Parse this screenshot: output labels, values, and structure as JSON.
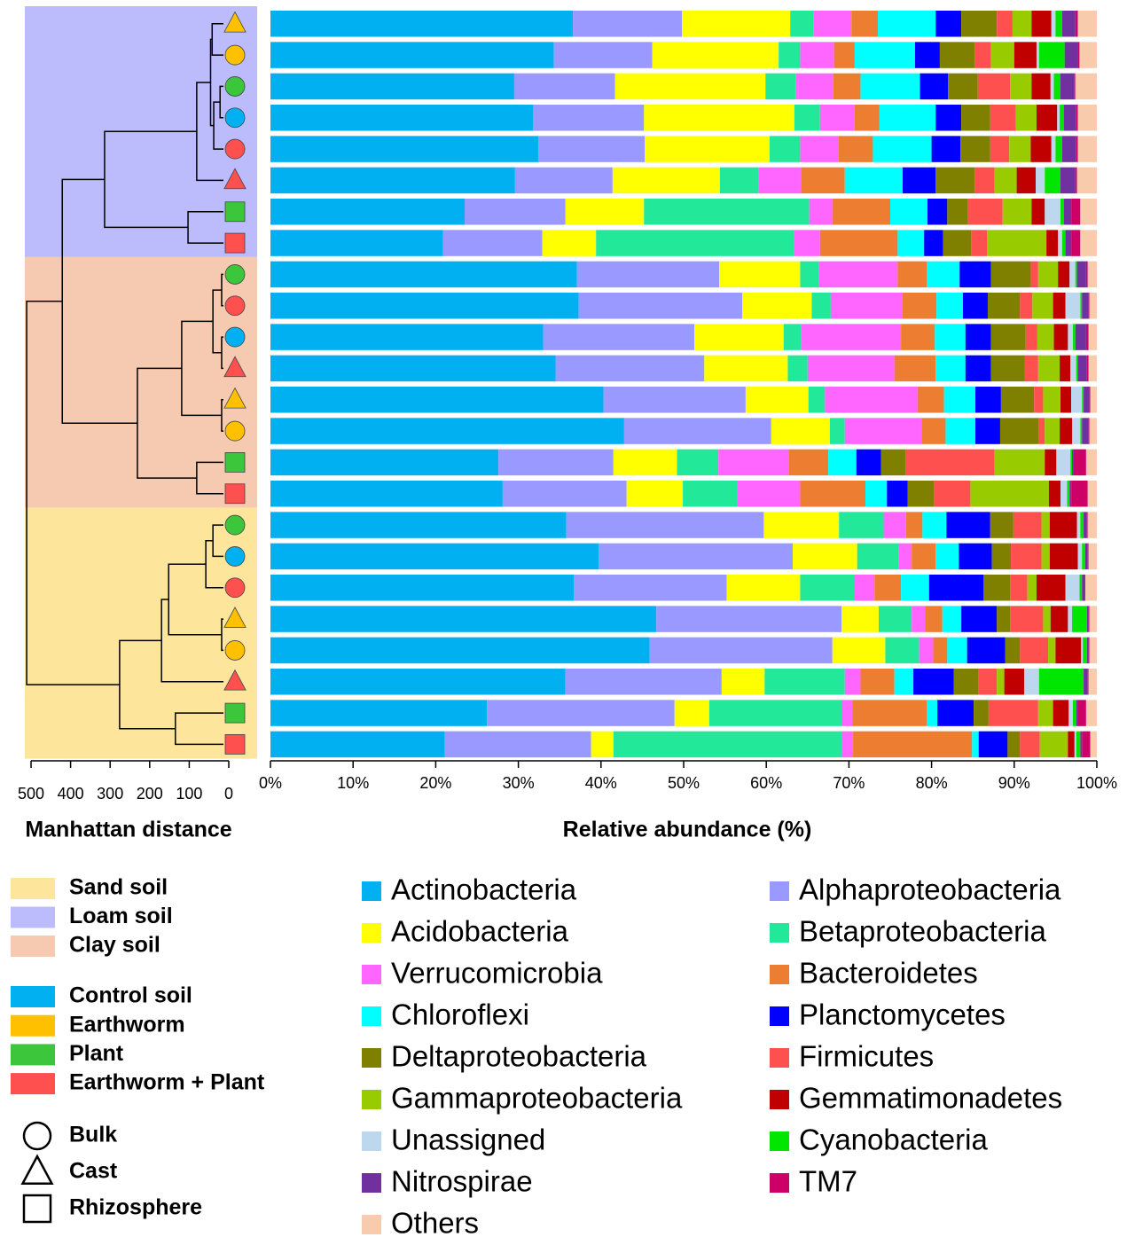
{
  "chart_data": {
    "type": "stacked_barh",
    "xlabel": "Relative abundance (%)",
    "xlim": [
      0,
      100
    ],
    "xticks": [
      {
        "value": 0,
        "label": "0%"
      },
      {
        "value": 10,
        "label": "10%"
      },
      {
        "value": 20,
        "label": "20%"
      },
      {
        "value": 30,
        "label": "30%"
      },
      {
        "value": 40,
        "label": "40%"
      },
      {
        "value": 50,
        "label": "50%"
      },
      {
        "value": 60,
        "label": "60%"
      },
      {
        "value": 70,
        "label": "70%"
      },
      {
        "value": 80,
        "label": "80%"
      },
      {
        "value": 90,
        "label": "90%"
      },
      {
        "value": 100,
        "label": "100%"
      }
    ],
    "categories": [
      null,
      null,
      null,
      null,
      null,
      null,
      null,
      null,
      null,
      null,
      null,
      null,
      null,
      null,
      null,
      null,
      null,
      null,
      null,
      null,
      null,
      null,
      null,
      null
    ],
    "series": [
      {
        "name": "Actinobacteria",
        "color": "#00b0f0",
        "values": [
          36.6,
          34.3,
          29.5,
          31.8,
          32.4,
          29.6,
          23.5,
          20.9,
          37.1,
          37.3,
          33.0,
          34.5,
          40.3,
          42.8,
          27.6,
          28.1,
          35.8,
          39.7,
          36.7,
          46.7,
          45.9,
          35.7,
          26.2,
          21.1
        ]
      },
      {
        "name": "Alphaproteobacteria",
        "color": "#9999ff",
        "values": [
          13.2,
          11.9,
          12.2,
          13.4,
          12.9,
          11.8,
          12.2,
          12.0,
          17.2,
          19.8,
          18.3,
          18.0,
          17.2,
          17.8,
          13.9,
          15.0,
          23.9,
          23.5,
          18.5,
          22.4,
          22.1,
          18.9,
          22.7,
          17.7
        ]
      },
      {
        "name": "Acidobacteria",
        "color": "#ffff00",
        "values": [
          13.1,
          15.3,
          18.2,
          18.2,
          15.1,
          13.0,
          9.5,
          6.5,
          9.8,
          8.4,
          10.8,
          10.1,
          7.6,
          7.1,
          7.7,
          6.8,
          9.1,
          7.8,
          8.9,
          4.5,
          6.4,
          5.2,
          4.2,
          2.7
        ]
      },
      {
        "name": "Betaproteobacteria",
        "color": "#22e89a",
        "values": [
          2.8,
          2.6,
          3.7,
          3.1,
          3.7,
          4.7,
          20.0,
          24.0,
          2.3,
          2.3,
          2.1,
          2.4,
          2.0,
          1.8,
          5.0,
          6.6,
          5.4,
          5.0,
          6.5,
          4.0,
          4.1,
          9.7,
          16.0,
          27.7
        ]
      },
      {
        "name": "Verrucomicrobia",
        "color": "#ff66ff",
        "values": [
          4.6,
          4.1,
          4.5,
          4.2,
          4.6,
          5.1,
          2.8,
          3.1,
          9.5,
          8.7,
          12.1,
          10.5,
          11.2,
          9.3,
          8.5,
          7.6,
          2.7,
          1.6,
          2.5,
          1.6,
          1.7,
          1.9,
          1.3,
          1.3
        ]
      },
      {
        "name": "Bacteroidetes",
        "color": "#ed7d31",
        "values": [
          3.2,
          2.5,
          3.3,
          3.0,
          4.2,
          5.3,
          7.0,
          9.4,
          3.5,
          4.1,
          4.1,
          5.0,
          3.2,
          2.9,
          4.8,
          7.9,
          2.0,
          2.9,
          3.2,
          2.1,
          1.7,
          4.1,
          9.0,
          14.4
        ]
      },
      {
        "name": "Chloroflexi",
        "color": "#00ffff",
        "values": [
          7.0,
          7.3,
          7.2,
          6.8,
          7.1,
          7.0,
          4.5,
          3.2,
          4.0,
          3.2,
          3.7,
          3.6,
          3.8,
          3.6,
          3.4,
          2.6,
          2.9,
          2.8,
          3.4,
          2.3,
          2.4,
          2.3,
          1.3,
          0.8
        ]
      },
      {
        "name": "Planctomycetes",
        "color": "#0000ff",
        "values": [
          3.1,
          3.0,
          3.4,
          3.1,
          3.5,
          4.0,
          2.4,
          2.3,
          3.8,
          3.0,
          3.1,
          3.1,
          3.1,
          3.0,
          3.0,
          2.5,
          5.3,
          4.0,
          6.6,
          4.3,
          4.6,
          4.9,
          4.4,
          3.5
        ]
      },
      {
        "name": "Deltaproteobacteria",
        "color": "#808000",
        "values": [
          4.3,
          4.2,
          3.6,
          3.5,
          3.6,
          4.7,
          2.5,
          3.4,
          4.8,
          3.9,
          4.2,
          4.1,
          4.0,
          4.7,
          3.0,
          3.2,
          2.8,
          2.3,
          3.2,
          1.6,
          1.8,
          3.0,
          1.8,
          1.5
        ]
      },
      {
        "name": "Firmicutes",
        "color": "#ff5050",
        "values": [
          1.9,
          2.0,
          3.9,
          3.1,
          2.3,
          2.4,
          4.2,
          1.9,
          0.9,
          1.5,
          1.4,
          1.6,
          1.1,
          0.7,
          10.7,
          4.4,
          3.4,
          3.7,
          2.1,
          4.0,
          3.4,
          2.2,
          6.0,
          2.4
        ]
      },
      {
        "name": "Gammaproteobacteria",
        "color": "#99cc00",
        "values": [
          2.3,
          2.8,
          2.6,
          2.5,
          2.6,
          2.7,
          3.5,
          7.2,
          2.4,
          2.5,
          2.0,
          2.6,
          2.1,
          1.8,
          6.1,
          9.5,
          1.0,
          1.0,
          1.1,
          0.9,
          0.9,
          0.9,
          1.8,
          3.4
        ]
      },
      {
        "name": "Gemmatimonadetes",
        "color": "#c00000",
        "values": [
          2.4,
          2.7,
          2.3,
          2.5,
          2.5,
          2.3,
          1.6,
          1.4,
          1.4,
          1.5,
          1.7,
          1.3,
          1.3,
          1.5,
          1.4,
          1.4,
          3.3,
          3.4,
          3.5,
          2.1,
          3.1,
          2.4,
          1.9,
          0.8
        ]
      },
      {
        "name": "Unassigned",
        "color": "#bdd7ee",
        "values": [
          0.5,
          0.3,
          0.4,
          0.3,
          0.5,
          1.1,
          1.9,
          0.5,
          0.7,
          1.8,
          0.6,
          0.7,
          1.3,
          1.0,
          1.7,
          0.8,
          0.4,
          0.5,
          1.7,
          0.5,
          0.2,
          1.8,
          0.5,
          0.2
        ]
      },
      {
        "name": "Cyanobacteria",
        "color": "#00e600",
        "values": [
          0.8,
          3.1,
          0.8,
          0.5,
          0.8,
          1.9,
          0.4,
          0.4,
          0.2,
          0.2,
          0.3,
          0.2,
          0.2,
          0.2,
          0.2,
          0.3,
          0.4,
          0.4,
          0.3,
          1.8,
          0.5,
          5.4,
          0.4,
          0.5
        ]
      },
      {
        "name": "Nitrospirae",
        "color": "#7030a0",
        "values": [
          1.6,
          1.6,
          1.7,
          1.5,
          1.7,
          1.8,
          0.9,
          0.7,
          1.1,
          0.8,
          1.3,
          1.1,
          0.7,
          0.8,
          0.2,
          0.2,
          0.4,
          0.3,
          0.3,
          0.2,
          0.2,
          0.5,
          0.2,
          0.2
        ]
      },
      {
        "name": "TM7",
        "color": "#cc0066",
        "values": [
          0.3,
          0.2,
          0.1,
          0.2,
          0.2,
          0.2,
          1.1,
          1.1,
          0.2,
          0.1,
          0.3,
          0.2,
          0.1,
          0.1,
          1.5,
          2.0,
          0.1,
          0.1,
          0.1,
          0.1,
          0.1,
          0.1,
          1.0,
          1.0
        ]
      },
      {
        "name": "Others",
        "color": "#f8cbad",
        "values": [
          2.3,
          2.1,
          2.6,
          2.3,
          2.3,
          2.4,
          2.0,
          2.0,
          1.1,
          0.9,
          1.0,
          1.0,
          0.8,
          0.9,
          1.3,
          1.1,
          1.1,
          1.0,
          1.4,
          0.9,
          0.9,
          1.0,
          1.3,
          0.8
        ]
      }
    ],
    "dendrogram": {
      "xlabel": "Manhattan distance",
      "xlim": [
        500,
        0
      ],
      "xticks": [
        500,
        400,
        300,
        200,
        100,
        0
      ],
      "merges": [
        {
          "children": [
            0,
            1
          ],
          "height": 42
        },
        {
          "children": [
            2,
            3
          ],
          "height": 22
        },
        {
          "children": [
            25,
            4
          ],
          "height": 38
        },
        {
          "children": [
            24,
            26
          ],
          "height": 46
        },
        {
          "children": [
            27,
            5
          ],
          "height": 81
        },
        {
          "children": [
            6,
            7
          ],
          "height": 103
        },
        {
          "children": [
            28,
            29
          ],
          "height": 314
        },
        {
          "children": [
            8,
            9
          ],
          "height": 18
        },
        {
          "children": [
            10,
            11
          ],
          "height": 18
        },
        {
          "children": [
            31,
            32
          ],
          "height": 40
        },
        {
          "children": [
            12,
            13
          ],
          "height": 18
        },
        {
          "children": [
            33,
            34
          ],
          "height": 119
        },
        {
          "children": [
            14,
            15
          ],
          "height": 81
        },
        {
          "children": [
            35,
            36
          ],
          "height": 231
        },
        {
          "children": [
            30,
            37
          ],
          "height": 421
        },
        {
          "children": [
            16,
            17
          ],
          "height": 40
        },
        {
          "children": [
            39,
            18
          ],
          "height": 58
        },
        {
          "children": [
            19,
            20
          ],
          "height": 18
        },
        {
          "children": [
            40,
            41
          ],
          "height": 152
        },
        {
          "children": [
            42,
            21
          ],
          "height": 170
        },
        {
          "children": [
            22,
            23
          ],
          "height": 135
        },
        {
          "children": [
            43,
            44
          ],
          "height": 276
        },
        {
          "children": [
            38,
            45
          ],
          "height": 511
        }
      ]
    },
    "soil_legend": [
      {
        "name": "Sand soil",
        "color": "#fde59c"
      },
      {
        "name": "Loam soil",
        "color": "#bcbcfc"
      },
      {
        "name": "Clay soil",
        "color": "#f6cab0"
      }
    ],
    "treatment_legend": [
      {
        "name": "Control soil",
        "color": "#00b0f0"
      },
      {
        "name": "Earthworm",
        "color": "#ffc000"
      },
      {
        "name": "Plant",
        "color": "#3cc63c"
      },
      {
        "name": "Earthworm + Plant",
        "color": "#ff5050"
      }
    ],
    "sample_legend": [
      {
        "name": "Bulk",
        "shape": "circle"
      },
      {
        "name": "Cast",
        "shape": "triangle"
      },
      {
        "name": "Rhizosphere",
        "shape": "square"
      }
    ],
    "samples": [
      {
        "soil": 1,
        "treatment": 1,
        "sample": 1
      },
      {
        "soil": 1,
        "treatment": 1,
        "sample": 0
      },
      {
        "soil": 1,
        "treatment": 2,
        "sample": 0
      },
      {
        "soil": 1,
        "treatment": 0,
        "sample": 0
      },
      {
        "soil": 1,
        "treatment": 3,
        "sample": 0
      },
      {
        "soil": 1,
        "treatment": 3,
        "sample": 1
      },
      {
        "soil": 1,
        "treatment": 2,
        "sample": 2
      },
      {
        "soil": 1,
        "treatment": 3,
        "sample": 2
      },
      {
        "soil": 2,
        "treatment": 2,
        "sample": 0
      },
      {
        "soil": 2,
        "treatment": 3,
        "sample": 0
      },
      {
        "soil": 2,
        "treatment": 0,
        "sample": 0
      },
      {
        "soil": 2,
        "treatment": 3,
        "sample": 1
      },
      {
        "soil": 2,
        "treatment": 1,
        "sample": 1
      },
      {
        "soil": 2,
        "treatment": 1,
        "sample": 0
      },
      {
        "soil": 2,
        "treatment": 2,
        "sample": 2
      },
      {
        "soil": 2,
        "treatment": 3,
        "sample": 2
      },
      {
        "soil": 0,
        "treatment": 2,
        "sample": 0
      },
      {
        "soil": 0,
        "treatment": 0,
        "sample": 0
      },
      {
        "soil": 0,
        "treatment": 3,
        "sample": 0
      },
      {
        "soil": 0,
        "treatment": 1,
        "sample": 1
      },
      {
        "soil": 0,
        "treatment": 1,
        "sample": 0
      },
      {
        "soil": 0,
        "treatment": 3,
        "sample": 1
      },
      {
        "soil": 0,
        "treatment": 2,
        "sample": 2
      },
      {
        "soil": 0,
        "treatment": 3,
        "sample": 2
      }
    ]
  }
}
